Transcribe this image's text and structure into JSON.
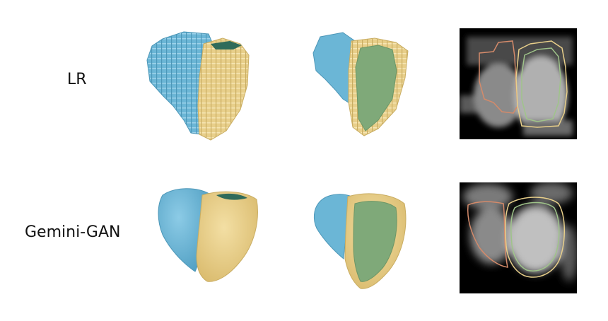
{
  "rows": [
    {
      "label": "LR",
      "style": "voxelized"
    },
    {
      "label": "Gemini-GAN",
      "style": "smooth"
    }
  ],
  "colors": {
    "right_ventricle": "#6bb6d6",
    "left_ventricle_wall": "#e8cf8a",
    "left_ventricle_cavity": "#7fa979",
    "rv_contour": "#d48a6a",
    "lv_wall_contour": "#e8cf8a",
    "lv_cavity_contour": "#9fc48a",
    "slice_background": "#000000"
  }
}
